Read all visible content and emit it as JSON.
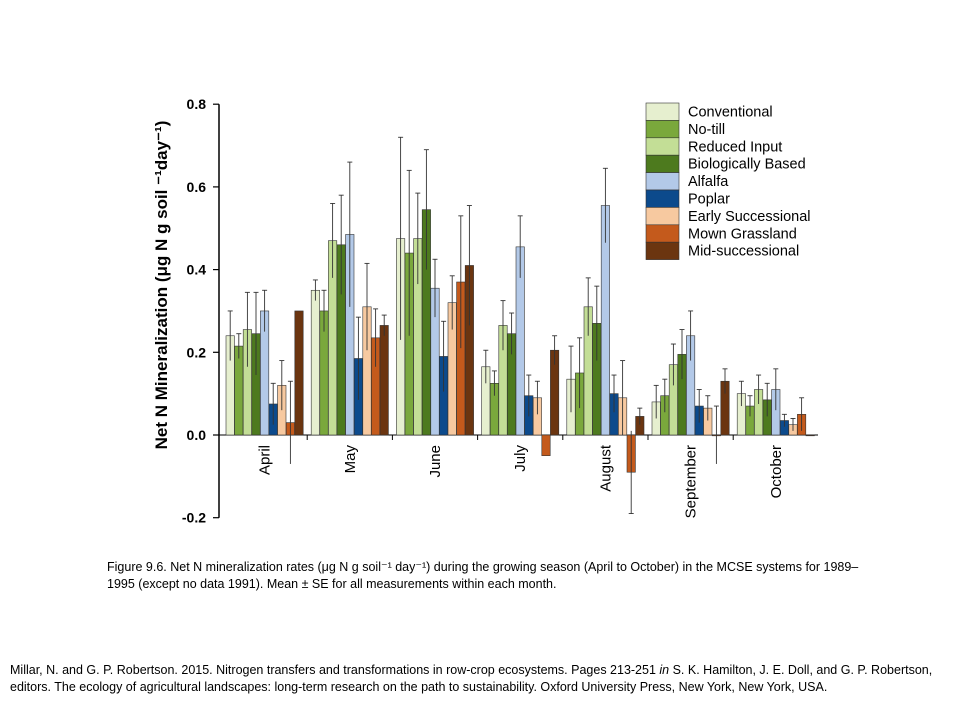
{
  "chart_data": {
    "type": "bar",
    "ylabel": "Net N Mineralization (μg N g soil ⁻¹day⁻¹)",
    "ylim": [
      -0.2,
      0.8
    ],
    "yticks": [
      "-0.2",
      "0.0",
      "0.2",
      "0.4",
      "0.6",
      "0.8"
    ],
    "grid": false,
    "legend_position": "top-right",
    "categories": [
      "April",
      "May",
      "June",
      "July",
      "August",
      "September",
      "October"
    ],
    "series": [
      {
        "name": "Conventional",
        "color": "#e6efcf",
        "values": [
          0.24,
          0.35,
          0.475,
          0.165,
          0.135,
          0.08,
          0.1
        ],
        "err": [
          0.06,
          0.025,
          0.245,
          0.04,
          0.08,
          0.04,
          0.03
        ]
      },
      {
        "name": "No-till",
        "color": "#7aa83c",
        "values": [
          0.215,
          0.3,
          0.44,
          0.125,
          0.15,
          0.095,
          0.07
        ],
        "err": [
          0.03,
          0.05,
          0.2,
          0.03,
          0.085,
          0.04,
          0.025
        ]
      },
      {
        "name": "Reduced Input",
        "color": "#c3de96",
        "values": [
          0.255,
          0.47,
          0.475,
          0.265,
          0.31,
          0.17,
          0.11
        ],
        "err": [
          0.09,
          0.09,
          0.11,
          0.06,
          0.07,
          0.05,
          0.035
        ]
      },
      {
        "name": "Biologically Based",
        "color": "#4d7a1e",
        "values": [
          0.245,
          0.46,
          0.545,
          0.245,
          0.27,
          0.195,
          0.085
        ],
        "err": [
          0.1,
          0.12,
          0.145,
          0.05,
          0.09,
          0.06,
          0.04
        ]
      },
      {
        "name": "Alfalfa",
        "color": "#b3c9e8",
        "values": [
          0.3,
          0.485,
          0.355,
          0.455,
          0.555,
          0.24,
          0.11
        ],
        "err": [
          0.05,
          0.175,
          0.07,
          0.075,
          0.09,
          0.06,
          0.05
        ]
      },
      {
        "name": "Poplar",
        "color": "#0c4a8c",
        "values": [
          0.075,
          0.185,
          0.19,
          0.095,
          0.1,
          0.07,
          0.035
        ],
        "err": [
          0.05,
          0.1,
          0.085,
          0.05,
          0.045,
          0.04,
          0.015
        ]
      },
      {
        "name": "Early Successional",
        "color": "#f7c9a0",
        "values": [
          0.12,
          0.31,
          0.32,
          0.09,
          0.09,
          0.065,
          0.025
        ],
        "err": [
          0.06,
          0.105,
          0.065,
          0.04,
          0.09,
          0.03,
          0.015
        ]
      },
      {
        "name": "Mown Grassland",
        "color": "#c45a1c",
        "values": [
          0.03,
          0.235,
          0.37,
          -0.05,
          -0.09,
          0.0,
          0.05
        ],
        "err": [
          0.1,
          0.07,
          0.16,
          0.0,
          0.1,
          0.07,
          0.04
        ]
      },
      {
        "name": "Mid-successional",
        "color": "#6b3510",
        "values": [
          0.3,
          0.265,
          0.41,
          0.205,
          0.045,
          0.13,
          0.0
        ],
        "err": [
          0.0,
          0.025,
          0.145,
          0.035,
          0.02,
          0.03,
          0.0
        ]
      }
    ]
  },
  "caption": {
    "text": "Figure 9.6. Net N mineralization rates (μg N g soil⁻¹ day⁻¹) during the growing season (April to October) in the MCSE systems for 1989–1995 (except no data 1991). Mean ± SE for all measurements within each month."
  },
  "citation": {
    "part1": "Millar, N. and G. P. Robertson. 2015. Nitrogen transfers and transformations in row-crop ecosystems. Pages 213-251 ",
    "in": "in",
    "part2": " S. K. Hamilton, J. E. Doll, and G. P. Robertson, editors. The ecology of agricultural landscapes: long-term research on the path to sustainability. Oxford University Press, New York, New York, USA."
  }
}
